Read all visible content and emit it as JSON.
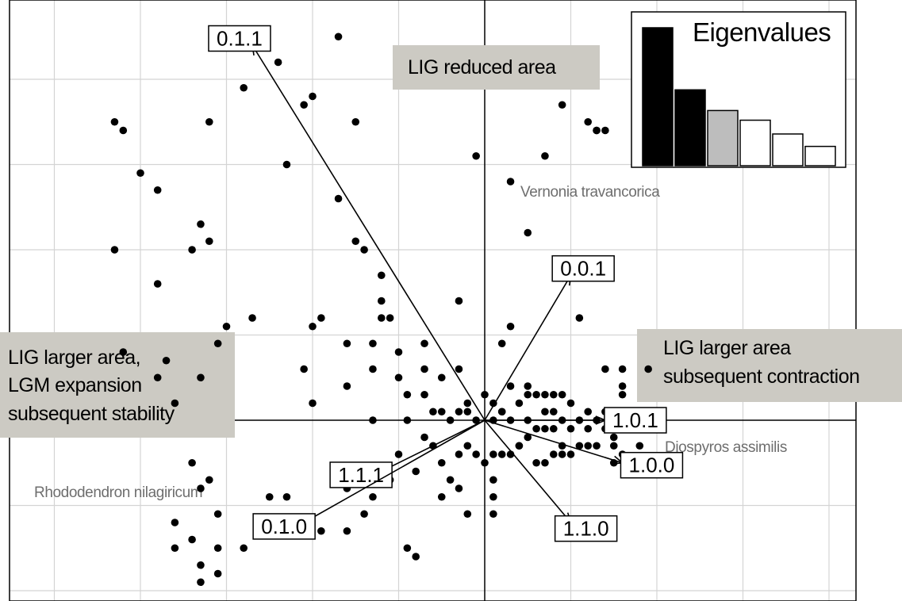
{
  "chart_data": {
    "type": "scatter",
    "title": "",
    "xlabel": "",
    "ylabel": "",
    "grid": true,
    "xlim": [
      -5.6,
      4.3
    ],
    "ylim": [
      -2.1,
      4.9
    ],
    "axes_lines_at_zero": true,
    "points": [
      [
        -4.3,
        3.5
      ],
      [
        -4.2,
        3.4
      ],
      [
        -4.3,
        2.0
      ],
      [
        -3.8,
        1.6
      ],
      [
        -2.8,
        3.9
      ],
      [
        -2.4,
        4.2
      ],
      [
        -2.1,
        3.7
      ],
      [
        -1.7,
        4.5
      ],
      [
        -1.5,
        3.5
      ],
      [
        -1.7,
        2.6
      ],
      [
        -1.5,
        2.1
      ],
      [
        -2.3,
        3.0
      ],
      [
        -2.0,
        3.8
      ],
      [
        -3.8,
        2.7
      ],
      [
        -4.0,
        2.9
      ],
      [
        -3.2,
        3.5
      ],
      [
        -3.3,
        2.3
      ],
      [
        -3.2,
        2.1
      ],
      [
        -3.4,
        2.0
      ],
      [
        -1.4,
        2.0
      ],
      [
        -1.2,
        1.7
      ],
      [
        -1.2,
        1.4
      ],
      [
        -1.2,
        1.2
      ],
      [
        -1.3,
        0.9
      ],
      [
        -1.3,
        0.6
      ],
      [
        -1.0,
        0.8
      ],
      [
        -1.0,
        0.5
      ],
      [
        -1.6,
        0.4
      ],
      [
        -2.1,
        0.6
      ],
      [
        -1.9,
        1.2
      ],
      [
        -2.0,
        1.1
      ],
      [
        -1.1,
        1.2
      ],
      [
        -3.3,
        0.5
      ],
      [
        -3.1,
        0.9
      ],
      [
        -3.0,
        1.1
      ],
      [
        -3.7,
        0.7
      ],
      [
        -4.2,
        0.8
      ],
      [
        -3.8,
        0.5
      ],
      [
        -3.6,
        0.2
      ],
      [
        -2.7,
        1.2
      ],
      [
        -2.0,
        0.2
      ],
      [
        -1.6,
        0.9
      ],
      [
        -0.3,
        1.4
      ],
      [
        0.3,
        1.1
      ],
      [
        0.2,
        0.9
      ],
      [
        0.5,
        2.2
      ],
      [
        0.3,
        2.8
      ],
      [
        0.7,
        3.1
      ],
      [
        -0.1,
        3.1
      ],
      [
        -0.7,
        0.9
      ],
      [
        -0.3,
        0.6
      ],
      [
        -0.5,
        0.5
      ],
      [
        0.9,
        3.7
      ],
      [
        1.2,
        3.5
      ],
      [
        1.3,
        3.4
      ],
      [
        1.3,
        3.4
      ],
      [
        1.4,
        3.4
      ],
      [
        1.1,
        1.2
      ],
      [
        1.4,
        0.6
      ],
      [
        0.8,
        0.3
      ],
      [
        0.3,
        0.4
      ],
      [
        0.0,
        0.3
      ],
      [
        -0.2,
        0.2
      ],
      [
        0.1,
        0.2
      ],
      [
        0.2,
        0.1
      ],
      [
        0.4,
        0.2
      ],
      [
        0.5,
        0.3
      ],
      [
        0.5,
        0.4
      ],
      [
        0.6,
        0.3
      ],
      [
        0.7,
        0.3
      ],
      [
        0.9,
        0.3
      ],
      [
        1.0,
        0.2
      ],
      [
        1.2,
        0.1
      ],
      [
        1.6,
        0.3
      ],
      [
        1.6,
        0.4
      ],
      [
        1.7,
        0.1
      ],
      [
        1.4,
        -0.1
      ],
      [
        1.2,
        -0.1
      ],
      [
        1.0,
        -0.1
      ],
      [
        0.8,
        -0.1
      ],
      [
        0.7,
        -0.1
      ],
      [
        0.6,
        -0.1
      ],
      [
        0.5,
        -0.2
      ],
      [
        0.4,
        -0.3
      ],
      [
        0.4,
        -0.3
      ],
      [
        0.3,
        -0.4
      ],
      [
        0.2,
        -0.4
      ],
      [
        0.1,
        -0.4
      ],
      [
        0.6,
        -0.5
      ],
      [
        0.7,
        -0.5
      ],
      [
        0.8,
        -0.4
      ],
      [
        0.9,
        -0.4
      ],
      [
        1.0,
        -0.4
      ],
      [
        1.1,
        -0.3
      ],
      [
        1.2,
        -0.3
      ],
      [
        1.3,
        -0.3
      ],
      [
        1.5,
        -0.3
      ],
      [
        1.6,
        -0.4
      ],
      [
        1.5,
        -0.2
      ],
      [
        1.3,
        0.0
      ],
      [
        1.1,
        0.0
      ],
      [
        0.9,
        0.0
      ],
      [
        0.8,
        0.1
      ],
      [
        0.7,
        0.1
      ],
      [
        0.5,
        0.0
      ],
      [
        0.3,
        0.0
      ],
      [
        0.1,
        0.0
      ],
      [
        -0.1,
        0.0
      ],
      [
        -0.4,
        0.0
      ],
      [
        -0.5,
        0.1
      ],
      [
        -0.3,
        0.1
      ],
      [
        -0.2,
        0.1
      ],
      [
        -0.6,
        0.1
      ],
      [
        -0.9,
        0.0
      ],
      [
        -1.3,
        0.0
      ],
      [
        -0.7,
        -0.2
      ],
      [
        -0.6,
        -0.3
      ],
      [
        -0.5,
        -0.5
      ],
      [
        -0.4,
        -0.7
      ],
      [
        -0.3,
        -0.8
      ],
      [
        -0.2,
        -1.1
      ],
      [
        0.1,
        -0.7
      ],
      [
        0.1,
        -0.9
      ],
      [
        0.1,
        -1.1
      ],
      [
        0.0,
        -0.5
      ],
      [
        -0.1,
        -0.4
      ],
      [
        -0.2,
        -0.3
      ],
      [
        -0.8,
        -0.6
      ],
      [
        -1.0,
        -0.4
      ],
      [
        -1.1,
        -0.7
      ],
      [
        -1.3,
        -0.9
      ],
      [
        -1.6,
        -0.8
      ],
      [
        -1.4,
        -1.1
      ],
      [
        -1.6,
        -1.3
      ],
      [
        -1.9,
        -1.3
      ],
      [
        -2.1,
        -1.3
      ],
      [
        -2.3,
        -0.9
      ],
      [
        -2.5,
        -0.9
      ],
      [
        -2.8,
        -1.5
      ],
      [
        -3.1,
        -1.5
      ],
      [
        -3.1,
        -1.8
      ],
      [
        -3.3,
        -1.9
      ],
      [
        -3.3,
        -1.7
      ],
      [
        -3.4,
        -1.4
      ],
      [
        -3.6,
        -1.2
      ],
      [
        -3.6,
        -1.5
      ],
      [
        -3.1,
        -1.1
      ],
      [
        -3.3,
        -0.8
      ],
      [
        -3.4,
        -0.5
      ],
      [
        -3.2,
        -0.7
      ],
      [
        -0.9,
        -1.5
      ],
      [
        -0.8,
        -1.6
      ],
      [
        -0.5,
        -0.9
      ],
      [
        -0.3,
        -0.4
      ],
      [
        0.9,
        -0.3
      ],
      [
        1.4,
        0.1
      ],
      [
        1.6,
        0.1
      ],
      [
        1.8,
        -0.3
      ],
      [
        1.5,
        -0.5
      ],
      [
        1.6,
        0.6
      ],
      [
        1.9,
        0.6
      ],
      [
        -0.7,
        0.3
      ],
      [
        -0.9,
        0.3
      ],
      [
        -0.7,
        0.6
      ],
      [
        0.2,
        0.1
      ]
    ],
    "vectors": [
      {
        "label": "0.1.1",
        "x": -2.7,
        "y": 4.4
      },
      {
        "label": "0.0.1",
        "x": 1.0,
        "y": 1.7
      },
      {
        "label": "1.0.1",
        "x": 1.4,
        "y": 0.0
      },
      {
        "label": "1.0.0",
        "x": 1.6,
        "y": -0.5
      },
      {
        "label": "1.1.0",
        "x": 1.0,
        "y": -1.2
      },
      {
        "label": "1.1.1",
        "x": -1.2,
        "y": -0.6
      },
      {
        "label": "0.1.0",
        "x": -2.1,
        "y": -1.2
      }
    ],
    "region_annotations": {
      "top": "LIG reduced area",
      "left": [
        "LIG larger area,",
        "LGM expansion",
        "subsequent stability"
      ],
      "right": [
        "LIG larger area",
        "subsequent contraction"
      ]
    },
    "species_labels": [
      "Vernonia travancorica",
      "Diospyros assimilis",
      "Rhododendron nilagiricum"
    ],
    "eigenvalues": {
      "title": "Eigenvalues",
      "values": [
        1.0,
        0.55,
        0.4,
        0.33,
        0.23,
        0.14
      ],
      "fills": [
        "#000000",
        "#000000",
        "#bdbdbd",
        "#ffffff",
        "#ffffff",
        "#ffffff"
      ]
    }
  }
}
